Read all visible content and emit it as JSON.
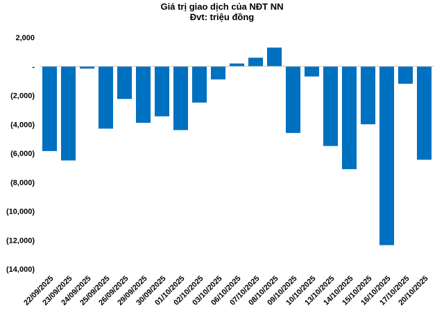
{
  "chart_data": {
    "type": "bar",
    "title": "Giá trị giao dịch của NĐT NN",
    "subtitle": "Đvt: triệu đồng",
    "xlabel": "",
    "ylabel": "",
    "ylim": [
      -14000,
      2000
    ],
    "y_ticks": [
      {
        "value": 2000,
        "label": "2,000"
      },
      {
        "value": 0,
        "label": "-"
      },
      {
        "value": -2000,
        "label": "(2,000)"
      },
      {
        "value": -4000,
        "label": "(4,000)"
      },
      {
        "value": -6000,
        "label": "(6,000)"
      },
      {
        "value": -8000,
        "label": "(8,000)"
      },
      {
        "value": -10000,
        "label": "(10,000)"
      },
      {
        "value": -12000,
        "label": "(12,000)"
      },
      {
        "value": -14000,
        "label": "(14,000)"
      }
    ],
    "grid": false,
    "legend": "none",
    "bar_color": "#0070C0",
    "categories": [
      "22/09/2025",
      "23/09/2025",
      "24/09/2025",
      "25/09/2025",
      "26/09/2025",
      "29/09/2025",
      "30/09/2025",
      "01/10/2025",
      "02/10/2025",
      "03/10/2025",
      "06/10/2025",
      "07/10/2025",
      "08/10/2025",
      "09/10/2025",
      "10/10/2025",
      "13/10/2025",
      "14/10/2025",
      "15/10/2025",
      "16/10/2025",
      "17/10/2025",
      "20/10/2025"
    ],
    "values": [
      -5850,
      -6500,
      -150,
      -4300,
      -2250,
      -3900,
      -3450,
      -4400,
      -2500,
      -900,
      200,
      600,
      1300,
      -4600,
      -700,
      -5500,
      -7100,
      -4000,
      -12350,
      -1200,
      -6450
    ]
  }
}
